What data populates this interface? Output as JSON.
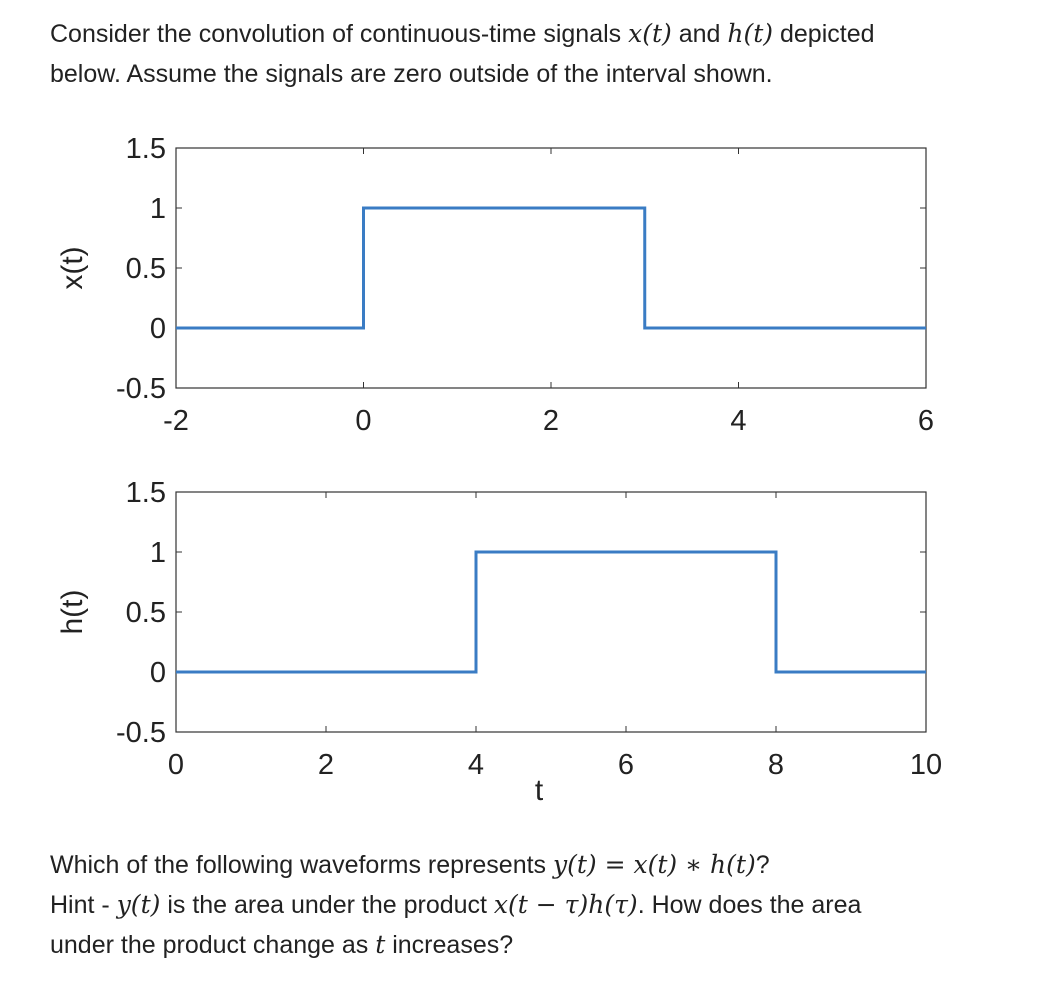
{
  "text": {
    "intro": {
      "s1": "Consider the convolution of continuous-time signals ",
      "x_t": "x(t)",
      "and": " and ",
      "h_t": "h(t)",
      "s2": " depicted",
      "line2": "below. Assume the signals are zero outside of the interval shown."
    },
    "question": {
      "s1": "Which of the following waveforms represents ",
      "eq": "y(t) = x(t) ∗ h(t)",
      "s1_end": "?",
      "hint1": "Hint - ",
      "y_t": "y(t)",
      "hint2": " is the area under the product ",
      "prod": "x(t − τ)h(τ)",
      "hint3": ". How does the area",
      "line3a": "under the product change as ",
      "t": "t",
      "line3b": " increases?"
    }
  },
  "chart_data": [
    {
      "type": "line",
      "ylabel": "x(t)",
      "xlabel": "",
      "xlim": [
        -2,
        6
      ],
      "ylim": [
        -0.5,
        1.5
      ],
      "xticks": [
        -2,
        0,
        2,
        4,
        6
      ],
      "yticks": [
        -0.5,
        0,
        0.5,
        1,
        1.5
      ],
      "x_tick_labels": [
        "-2",
        "0",
        "2",
        "4",
        "6"
      ],
      "y_tick_labels": [
        "-0.5",
        "0",
        "0.5",
        "1",
        "1.5"
      ],
      "series": [
        {
          "color": "#3a7cc4",
          "points": [
            [
              -2,
              0
            ],
            [
              0,
              0
            ],
            [
              0,
              1
            ],
            [
              3,
              1
            ],
            [
              3,
              0
            ],
            [
              6,
              0
            ]
          ]
        }
      ]
    },
    {
      "type": "line",
      "ylabel": "h(t)",
      "xlabel": "t",
      "xlim": [
        0,
        10
      ],
      "ylim": [
        -0.5,
        1.5
      ],
      "xticks": [
        0,
        2,
        4,
        6,
        8,
        10
      ],
      "yticks": [
        -0.5,
        0,
        0.5,
        1,
        1.5
      ],
      "x_tick_labels": [
        "0",
        "2",
        "4",
        "6",
        "8",
        "10"
      ],
      "y_tick_labels": [
        "-0.5",
        "0",
        "0.5",
        "1",
        "1.5"
      ],
      "series": [
        {
          "color": "#3a7cc4",
          "points": [
            [
              0,
              0
            ],
            [
              4,
              0
            ],
            [
              4,
              1
            ],
            [
              8,
              1
            ],
            [
              8,
              0
            ],
            [
              10,
              0
            ]
          ]
        }
      ]
    }
  ]
}
